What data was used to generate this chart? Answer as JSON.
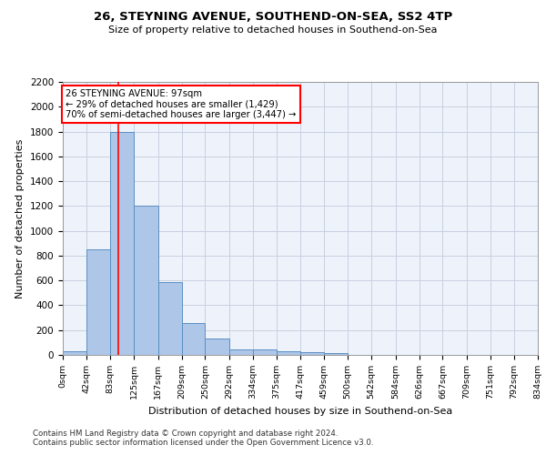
{
  "title1": "26, STEYNING AVENUE, SOUTHEND-ON-SEA, SS2 4TP",
  "title2": "Size of property relative to detached houses in Southend-on-Sea",
  "xlabel": "Distribution of detached houses by size in Southend-on-Sea",
  "ylabel": "Number of detached properties",
  "bar_edges": [
    0,
    42,
    83,
    125,
    167,
    209,
    250,
    292,
    334,
    375,
    417,
    459,
    500,
    542,
    584,
    626,
    667,
    709,
    751,
    792,
    834
  ],
  "bar_heights": [
    30,
    850,
    1800,
    1200,
    585,
    255,
    130,
    45,
    45,
    30,
    20,
    15,
    0,
    0,
    0,
    0,
    0,
    0,
    0,
    0
  ],
  "bar_color": "#aec6e8",
  "bar_edge_color": "#5a8fc2",
  "red_line_x": 97,
  "annotation_line1": "26 STEYNING AVENUE: 97sqm",
  "annotation_line2": "← 29% of detached houses are smaller (1,429)",
  "annotation_line3": "70% of semi-detached houses are larger (3,447) →",
  "annotation_box_color": "white",
  "annotation_border_color": "red",
  "ylim": [
    0,
    2200
  ],
  "yticks": [
    0,
    200,
    400,
    600,
    800,
    1000,
    1200,
    1400,
    1600,
    1800,
    2000,
    2200
  ],
  "tick_labels": [
    "0sqm",
    "42sqm",
    "83sqm",
    "125sqm",
    "167sqm",
    "209sqm",
    "250sqm",
    "292sqm",
    "334sqm",
    "375sqm",
    "417sqm",
    "459sqm",
    "500sqm",
    "542sqm",
    "584sqm",
    "626sqm",
    "667sqm",
    "709sqm",
    "751sqm",
    "792sqm",
    "834sqm"
  ],
  "footnote1": "Contains HM Land Registry data © Crown copyright and database right 2024.",
  "footnote2": "Contains public sector information licensed under the Open Government Licence v3.0.",
  "bg_color": "#eef2fb",
  "grid_color": "#c8cfe0"
}
